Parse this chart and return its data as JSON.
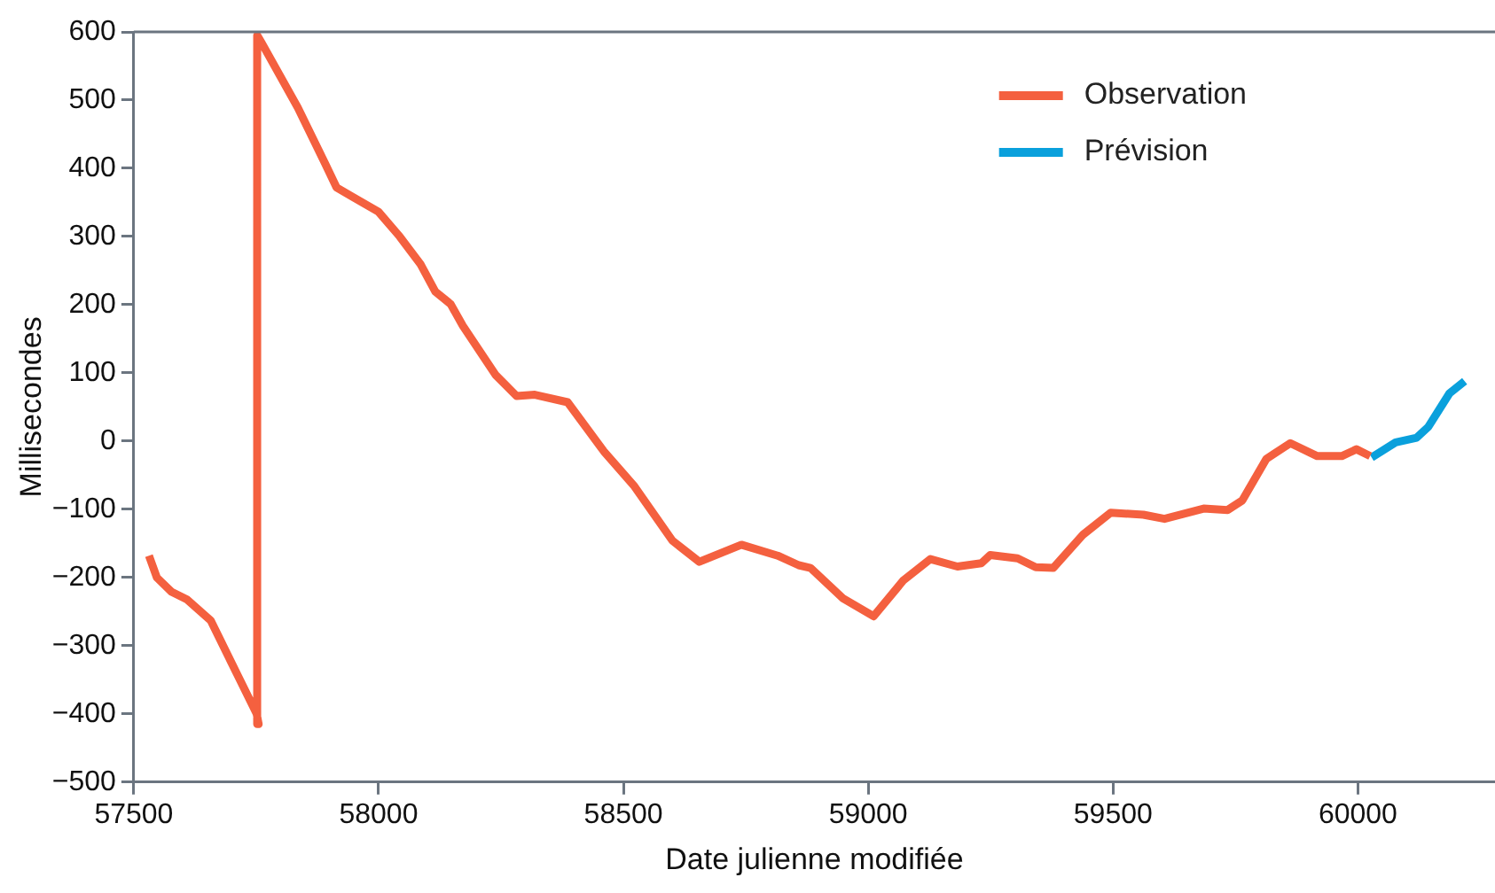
{
  "chart_data": {
    "type": "line",
    "xlabel": "Date julienne modifiée",
    "ylabel": "Millisecondes",
    "xlim": [
      57500,
      60280
    ],
    "xticks": [
      57500,
      58000,
      58500,
      59000,
      59500,
      60000
    ],
    "ylim": [
      -500,
      600
    ],
    "yticks": [
      {
        "value": -500,
        "label": "−500"
      },
      {
        "value": -400,
        "label": "−400"
      },
      {
        "value": -300,
        "label": "−300"
      },
      {
        "value": -200,
        "label": "−200"
      },
      {
        "value": -100,
        "label": "−100"
      },
      0,
      100,
      200,
      300,
      400,
      500,
      600
    ],
    "grid": false,
    "legend": "top right",
    "marker": "none",
    "line_style": "solid",
    "series": [
      {
        "name": "Observation",
        "color": "#f4603f",
        "x": [
          57531,
          57547,
          57577,
          57608,
          57657,
          57751,
          57755,
          57752,
          57761,
          57835,
          57890,
          57914,
          57945,
          58000,
          58043,
          58086,
          58116,
          58147,
          58172,
          58239,
          58282,
          58319,
          58386,
          58460,
          58521,
          58600,
          58655,
          58741,
          58815,
          58858,
          58882,
          58949,
          59011,
          59072,
          59127,
          59182,
          59231,
          59249,
          59305,
          59342,
          59378,
          59439,
          59495,
          59562,
          59605,
          59685,
          59734,
          59764,
          59813,
          59862,
          59917,
          59967,
          59997,
          60025
        ],
        "values": [
          -168,
          -200,
          -221,
          -232,
          -263,
          -400,
          -415,
          595,
          584,
          489,
          408,
          372,
          359,
          336,
          300,
          259,
          219,
          201,
          169,
          97,
          66,
          68,
          57,
          -15,
          -65,
          -146,
          -177,
          -152,
          -168,
          -182,
          -186,
          -231,
          -257,
          -204,
          -173,
          -184,
          -179,
          -167,
          -172,
          -185,
          -186,
          -137,
          -105,
          -108,
          -114,
          -99,
          -101,
          -87,
          -26,
          -3,
          -22,
          -22,
          -12,
          -22
        ]
      },
      {
        "name": "Prévision",
        "color": "#0aa0dc",
        "x": [
          60028,
          60077,
          60120,
          60144,
          60187,
          60218
        ],
        "values": [
          -24,
          -2,
          5,
          21,
          70,
          88
        ]
      }
    ]
  }
}
